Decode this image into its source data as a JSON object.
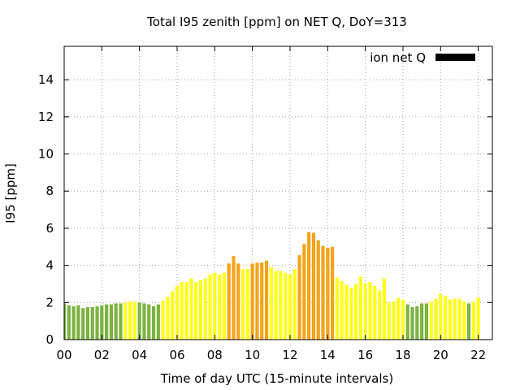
{
  "chart_data": {
    "type": "bar",
    "title": "Total I95 zenith [ppm] on NET Q, DoY=313",
    "xlabel": "Time of day UTC (15-minute intervals)",
    "ylabel": "I95 [ppm]",
    "xlim": [
      0,
      22.75
    ],
    "ylim": [
      0,
      15.8
    ],
    "xticks": [
      "00",
      "02",
      "04",
      "06",
      "08",
      "10",
      "12",
      "14",
      "16",
      "18",
      "20",
      "22"
    ],
    "yticks": [
      "0",
      "2",
      "4",
      "6",
      "8",
      "10",
      "12",
      "14"
    ],
    "grid": true,
    "legend": {
      "label": "ion net Q",
      "color": "#000000",
      "position": "top-right"
    },
    "bar_interval_hours": 0.25,
    "colors": {
      "green": "#7cb342",
      "yellow": "#ffff1a",
      "orange": "#f5a31a"
    },
    "values": [
      1.95,
      1.85,
      1.8,
      1.85,
      1.7,
      1.75,
      1.75,
      1.8,
      1.85,
      1.9,
      1.9,
      1.95,
      1.95,
      2.0,
      2.05,
      2.05,
      2.0,
      1.95,
      1.9,
      1.8,
      1.9,
      2.1,
      2.3,
      2.6,
      2.9,
      3.1,
      3.1,
      3.3,
      3.1,
      3.2,
      3.3,
      3.5,
      3.6,
      3.5,
      3.6,
      4.1,
      4.5,
      4.1,
      3.8,
      3.8,
      4.1,
      4.15,
      4.15,
      4.25,
      3.9,
      3.7,
      3.7,
      3.6,
      3.5,
      3.8,
      4.55,
      5.15,
      5.8,
      5.75,
      5.35,
      5.05,
      4.95,
      5.0,
      3.35,
      3.15,
      2.95,
      2.8,
      3.0,
      3.4,
      3.05,
      3.1,
      2.9,
      2.65,
      3.3,
      2.0,
      2.05,
      2.25,
      2.15,
      1.9,
      1.75,
      1.8,
      1.95,
      1.95,
      2.05,
      2.2,
      2.45,
      2.35,
      2.15,
      2.2,
      2.2,
      2.05,
      1.95,
      2.05,
      2.25
    ],
    "bar_colors": [
      "green",
      "green",
      "green",
      "green",
      "green",
      "green",
      "green",
      "green",
      "green",
      "green",
      "green",
      "green",
      "green",
      "yellow",
      "yellow",
      "yellow",
      "green",
      "green",
      "green",
      "green",
      "green",
      "yellow",
      "yellow",
      "yellow",
      "yellow",
      "yellow",
      "yellow",
      "yellow",
      "yellow",
      "yellow",
      "yellow",
      "yellow",
      "yellow",
      "yellow",
      "yellow",
      "orange",
      "orange",
      "orange",
      "yellow",
      "yellow",
      "orange",
      "orange",
      "orange",
      "orange",
      "yellow",
      "yellow",
      "yellow",
      "yellow",
      "yellow",
      "yellow",
      "orange",
      "orange",
      "orange",
      "orange",
      "orange",
      "orange",
      "orange",
      "orange",
      "yellow",
      "yellow",
      "yellow",
      "yellow",
      "yellow",
      "yellow",
      "yellow",
      "yellow",
      "yellow",
      "yellow",
      "yellow",
      "yellow",
      "yellow",
      "yellow",
      "yellow",
      "green",
      "green",
      "green",
      "green",
      "green",
      "yellow",
      "yellow",
      "yellow",
      "yellow",
      "yellow",
      "yellow",
      "yellow",
      "yellow",
      "green",
      "yellow",
      "yellow"
    ]
  }
}
